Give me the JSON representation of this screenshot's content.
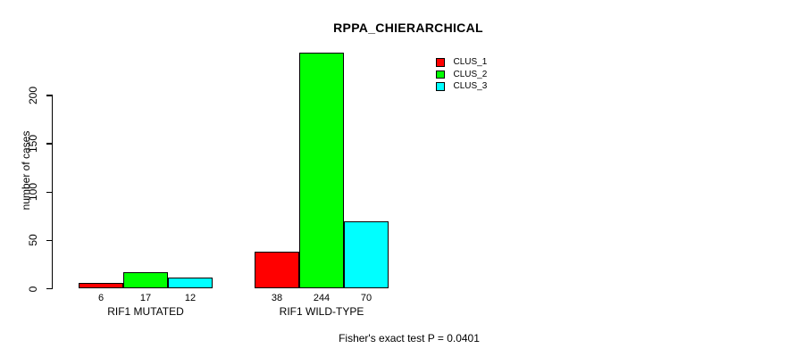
{
  "title": "RPPA_CHIERARCHICAL",
  "y_axis": {
    "label": "number of cases",
    "ticks": [
      0,
      50,
      100,
      150,
      200
    ]
  },
  "footer": "Fisher's exact test P = 0.0401",
  "legend": {
    "position": "top-right",
    "items": [
      {
        "label": "CLUS_1",
        "color": "#ff0000"
      },
      {
        "label": "CLUS_2",
        "color": "#00ff00"
      },
      {
        "label": "CLUS_3",
        "color": "#00ffff"
      }
    ]
  },
  "chart_data": {
    "type": "bar",
    "title": "RPPA_CHIERARCHICAL",
    "xlabel": "",
    "ylabel": "number of cases",
    "categories": [
      "RIF1 MUTATED",
      "RIF1 WILD-TYPE"
    ],
    "series": [
      {
        "name": "CLUS_1",
        "color": "#ff0000",
        "values": [
          6,
          38
        ]
      },
      {
        "name": "CLUS_2",
        "color": "#00ff00",
        "values": [
          17,
          244
        ]
      },
      {
        "name": "CLUS_3",
        "color": "#00ffff",
        "values": [
          12,
          70
        ]
      }
    ],
    "bar_value_labels_shown": true,
    "yticks": [
      0,
      50,
      100,
      150,
      200
    ],
    "ylim": [
      0,
      244
    ],
    "grid": false,
    "legend_position": "top-right",
    "background": "#ffffff",
    "annotation": "Fisher's exact test P = 0.0401"
  }
}
